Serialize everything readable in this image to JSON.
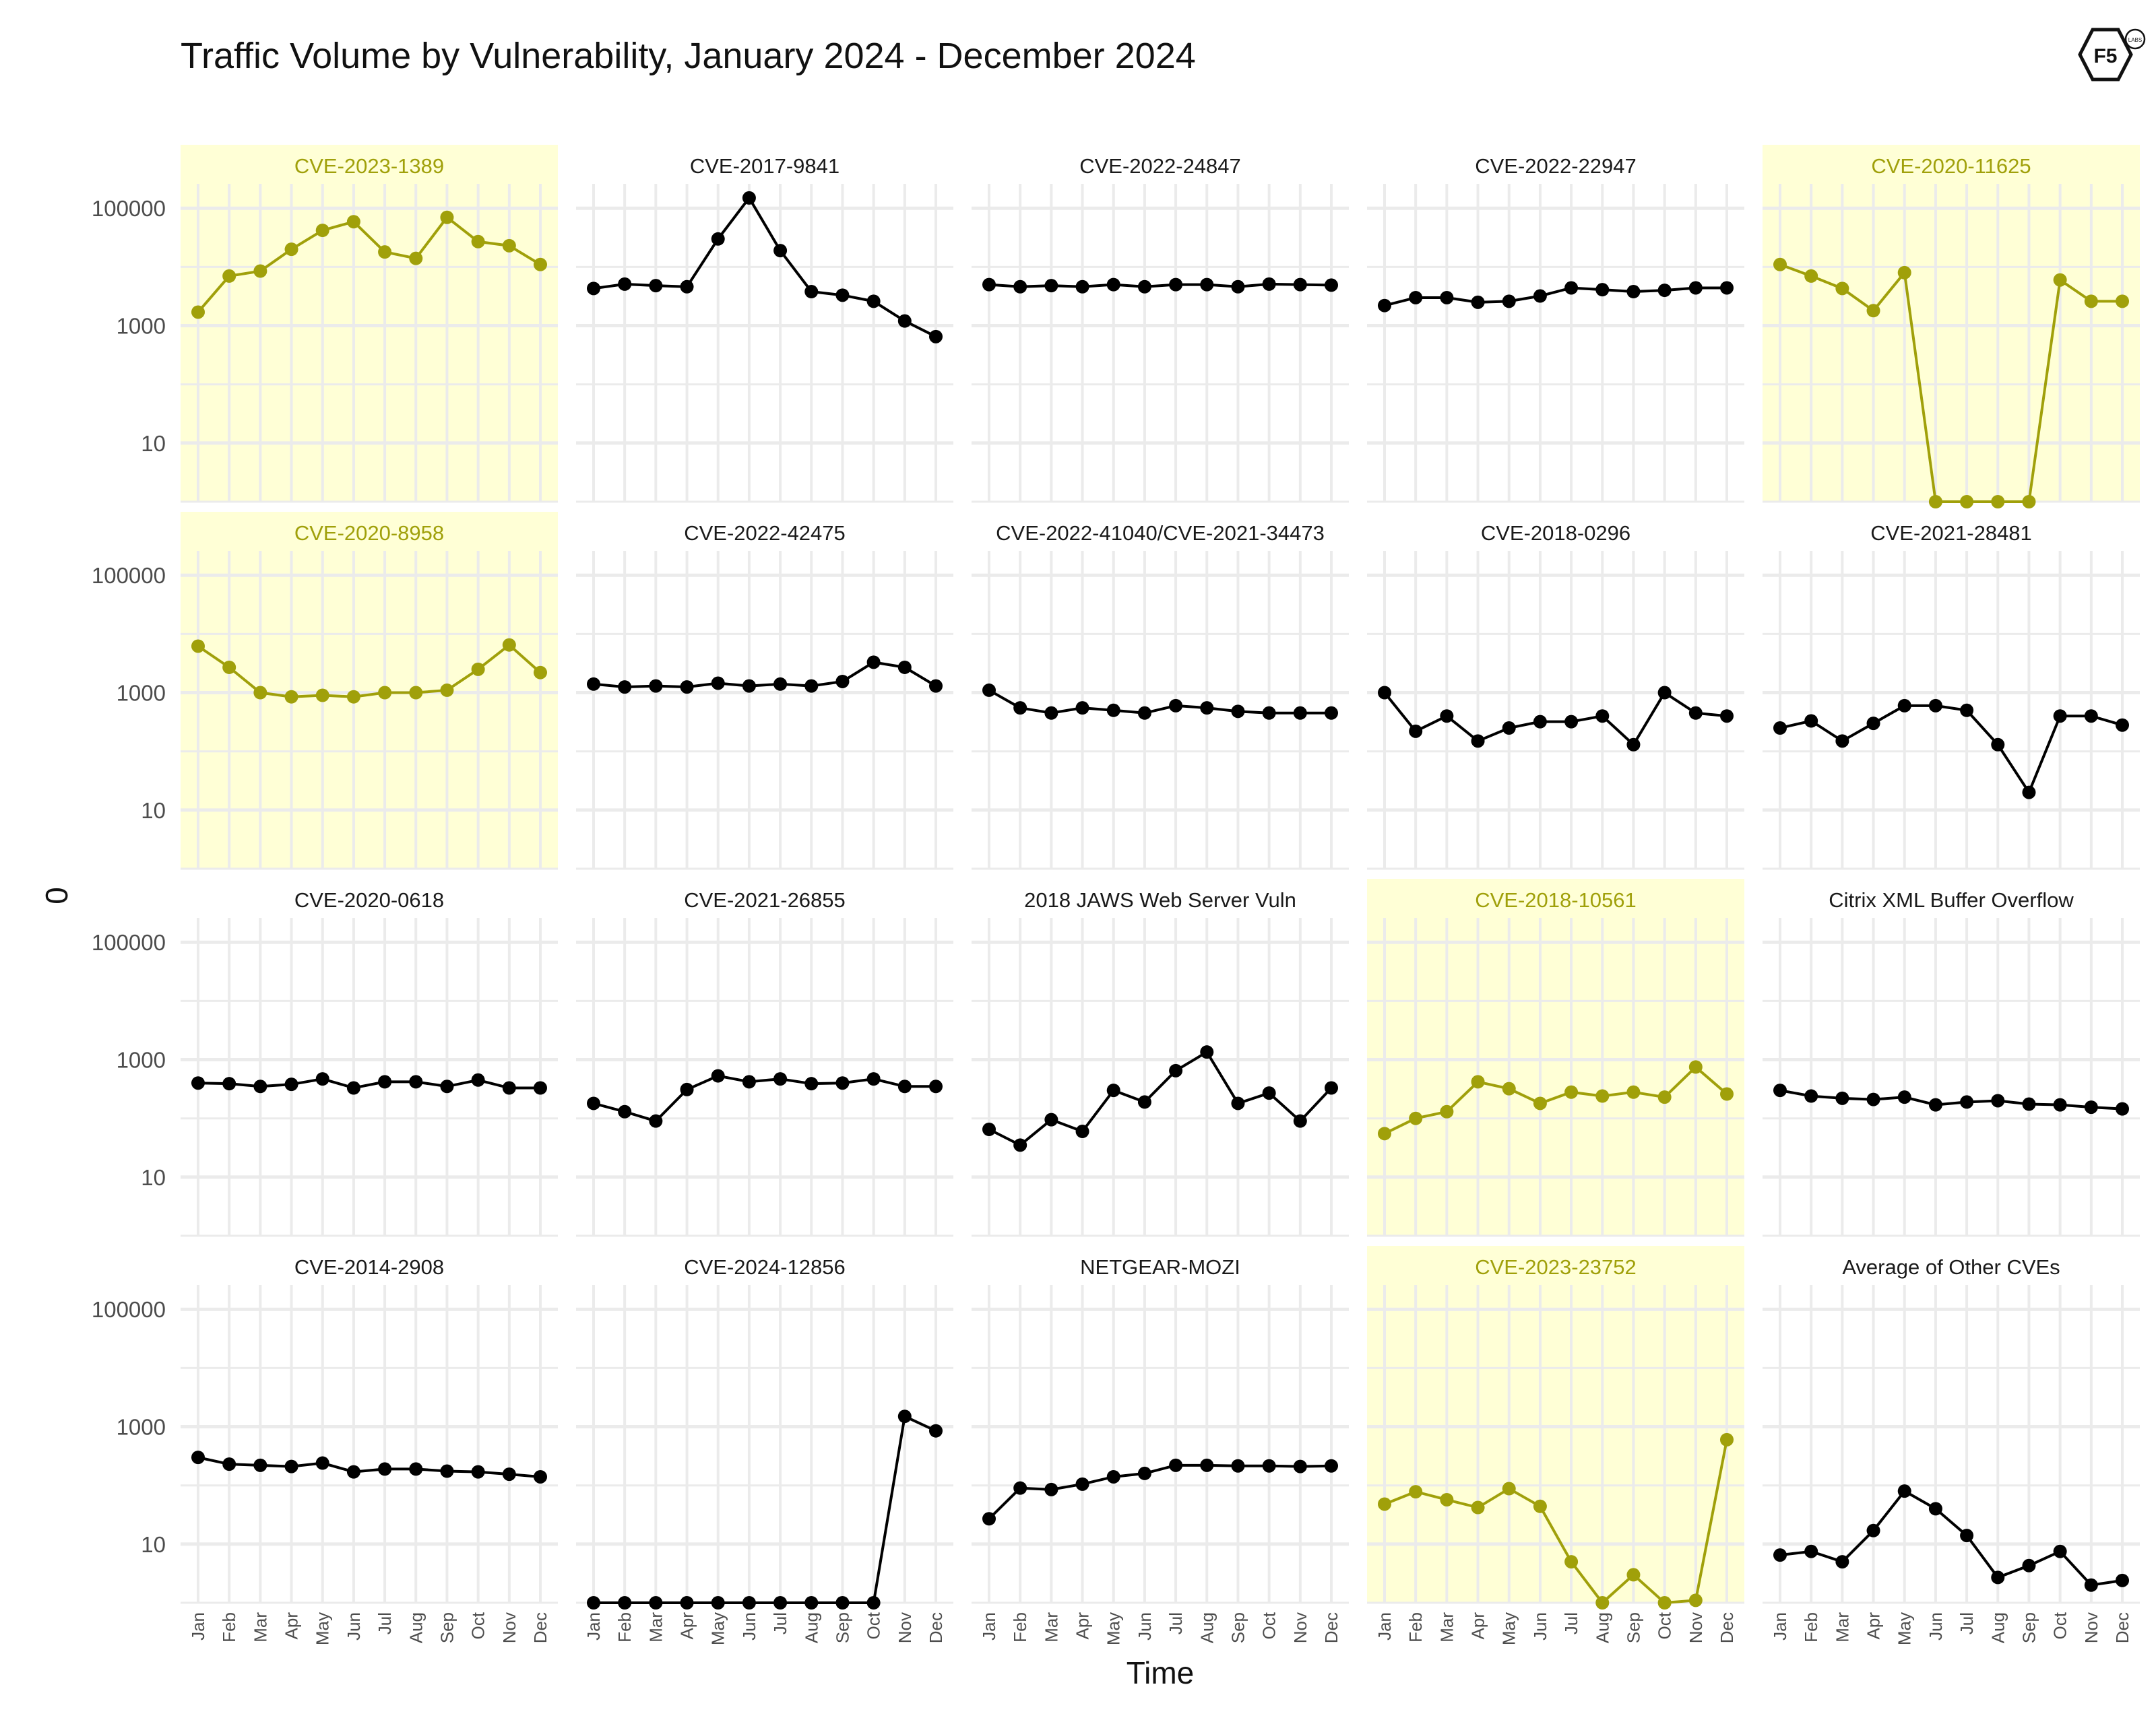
{
  "title": "Traffic Volume by Vulnerability, January 2024 - December 2024",
  "logo": {
    "text": "F5",
    "subtext": "LABS",
    "icon": "f5-labs-hexagon-logo"
  },
  "colors": {
    "highlight_bg": "#ffffd6",
    "highlight_line": "#a0a00a",
    "normal_line": "#000000",
    "grid": "#ebebeb"
  },
  "chart_data": {
    "type": "line",
    "layout": "facet-grid 4x5",
    "xlabel": "Time",
    "ylabel": "0",
    "yscale": "log10",
    "ylim": [
      1,
      200000
    ],
    "yticks": [
      "10",
      "1000",
      "100000"
    ],
    "x": [
      "Jan",
      "Feb",
      "Mar",
      "Apr",
      "May",
      "Jun",
      "Jul",
      "Aug",
      "Sep",
      "Oct",
      "Nov",
      "Dec"
    ],
    "panels": [
      {
        "name": "CVE-2023-1389",
        "highlight": true,
        "values": [
          1700,
          7000,
          8500,
          20000,
          42000,
          59000,
          18000,
          14000,
          70000,
          27000,
          23000,
          11000
        ]
      },
      {
        "name": "CVE-2017-9841",
        "highlight": false,
        "values": [
          4300,
          5100,
          4800,
          4600,
          30000,
          150000,
          19000,
          3800,
          3300,
          2600,
          1200,
          650
        ]
      },
      {
        "name": "CVE-2022-24847",
        "highlight": false,
        "values": [
          5000,
          4600,
          4800,
          4600,
          5000,
          4600,
          5000,
          5000,
          4600,
          5100,
          5000,
          4900
        ]
      },
      {
        "name": "CVE-2022-22947",
        "highlight": false,
        "values": [
          2200,
          3000,
          3000,
          2500,
          2600,
          3200,
          4400,
          4100,
          3800,
          4000,
          4400,
          4400
        ]
      },
      {
        "name": "CVE-2020-11625",
        "highlight": true,
        "values": [
          11000,
          7000,
          4300,
          1800,
          8000,
          1,
          1,
          1,
          1,
          6000,
          2600,
          2600
        ]
      },
      {
        "name": "CVE-2020-8958",
        "highlight": true,
        "values": [
          6200,
          2700,
          1000,
          850,
          900,
          850,
          1000,
          1000,
          1100,
          2500,
          6500,
          2200
        ]
      },
      {
        "name": "CVE-2022-42475",
        "highlight": false,
        "values": [
          1400,
          1250,
          1300,
          1250,
          1450,
          1300,
          1400,
          1300,
          1550,
          3300,
          2700,
          1300
        ]
      },
      {
        "name": "CVE-2022-41040/CVE-2021-34473",
        "highlight": false,
        "values": [
          1100,
          550,
          450,
          550,
          500,
          450,
          600,
          550,
          480,
          450,
          450,
          450
        ]
      },
      {
        "name": "CVE-2018-0296",
        "highlight": false,
        "values": [
          1000,
          220,
          400,
          150,
          250,
          320,
          320,
          400,
          130,
          1000,
          450,
          400
        ]
      },
      {
        "name": "CVE-2021-28481",
        "highlight": false,
        "values": [
          250,
          330,
          150,
          300,
          600,
          600,
          500,
          130,
          20,
          400,
          400,
          280
        ]
      },
      {
        "name": "CVE-2020-0618",
        "highlight": false,
        "values": [
          400,
          390,
          350,
          380,
          470,
          330,
          420,
          420,
          350,
          450,
          330,
          330
        ]
      },
      {
        "name": "CVE-2021-26855",
        "highlight": false,
        "values": [
          180,
          130,
          90,
          310,
          530,
          420,
          470,
          390,
          400,
          470,
          350,
          350
        ]
      },
      {
        "name": "2018 JAWS Web Server Vuln",
        "highlight": false,
        "values": [
          65,
          35,
          95,
          60,
          300,
          190,
          650,
          1350,
          180,
          270,
          90,
          330
        ]
      },
      {
        "name": "CVE-2018-10561",
        "highlight": true,
        "values": [
          55,
          100,
          130,
          420,
          320,
          180,
          280,
          240,
          280,
          230,
          750,
          260
        ]
      },
      {
        "name": "Citrix XML Buffer Overflow",
        "highlight": false,
        "values": [
          300,
          240,
          220,
          210,
          230,
          170,
          190,
          200,
          175,
          170,
          155,
          145
        ]
      },
      {
        "name": "CVE-2014-2908",
        "highlight": false,
        "values": [
          300,
          230,
          220,
          210,
          240,
          170,
          190,
          190,
          175,
          170,
          155,
          140
        ]
      },
      {
        "name": "CVE-2024-12856",
        "highlight": false,
        "values": [
          1,
          1,
          1,
          1,
          1,
          1,
          1,
          1,
          1,
          1,
          1500,
          850
        ]
      },
      {
        "name": "NETGEAR-MOZI",
        "highlight": false,
        "values": [
          27,
          90,
          85,
          105,
          140,
          160,
          220,
          220,
          215,
          215,
          210,
          215
        ]
      },
      {
        "name": "CVE-2023-23752",
        "highlight": true,
        "values": [
          48,
          78,
          57,
          42,
          88,
          44,
          5,
          1,
          3,
          1,
          1.1,
          600
        ]
      },
      {
        "name": "Average of Other CVEs",
        "highlight": false,
        "values": [
          6.5,
          7.5,
          5,
          17,
          80,
          40,
          14,
          2.7,
          4.3,
          7.5,
          2,
          2.4
        ]
      }
    ]
  }
}
